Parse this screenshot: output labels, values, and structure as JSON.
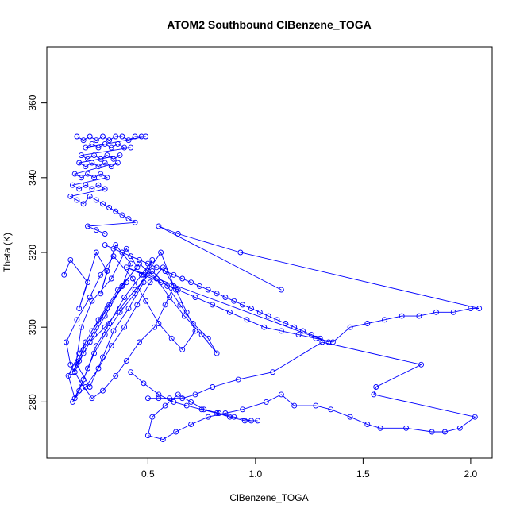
{
  "chart_data": {
    "type": "scatter",
    "title": "ATOM2 Southbound ClBenzene_TOGA",
    "xlabel": "ClBenzene_TOGA",
    "ylabel": "Theta (K)",
    "xlim": [
      0.03,
      2.1
    ],
    "ylim": [
      265,
      375
    ],
    "xticks": [
      {
        "value": 0.5,
        "label": "0.5"
      },
      {
        "value": 1.0,
        "label": "1.0"
      },
      {
        "value": 1.5,
        "label": "1.5"
      },
      {
        "value": 2.0,
        "label": "2.0"
      }
    ],
    "yticks": [
      {
        "value": 280,
        "label": "280"
      },
      {
        "value": 300,
        "label": "300"
      },
      {
        "value": 320,
        "label": "320"
      },
      {
        "value": 340,
        "label": "340"
      },
      {
        "value": 360,
        "label": "360"
      }
    ],
    "marker": "open-circle",
    "connect_points": true,
    "color": "#0000ff",
    "grid": false,
    "series": [
      {
        "x": [
          0.11,
          0.14,
          0.22,
          0.18,
          0.26,
          0.31,
          0.28,
          0.35,
          0.42,
          0.38,
          0.3,
          0.25,
          0.2,
          0.16,
          0.19,
          0.24,
          0.33,
          0.4,
          0.45,
          0.36,
          0.27,
          0.21,
          0.17,
          0.23,
          0.29,
          0.34,
          0.41,
          0.48,
          0.52,
          0.47,
          0.39,
          0.32,
          0.26,
          0.22,
          0.18,
          0.15,
          0.2,
          0.25,
          0.3,
          0.37,
          0.44,
          0.5,
          0.56,
          0.62,
          0.58,
          0.53,
          0.46,
          0.4,
          0.35,
          0.29,
          0.24,
          0.19,
          0.14,
          0.12,
          0.17,
          0.23,
          0.28,
          0.34,
          0.43,
          0.49,
          0.55,
          0.61,
          0.66,
          0.72,
          0.68,
          0.63,
          0.57,
          0.51,
          0.45,
          0.39,
          0.33,
          0.27,
          0.21,
          0.16,
          0.13,
          0.18,
          0.24,
          0.31,
          0.38,
          0.46,
          0.54,
          0.6,
          0.67,
          0.75,
          0.82,
          0.78,
          0.71,
          0.65,
          0.59,
          0.52,
          0.44,
          0.37,
          0.3,
          0.23,
          0.18,
          0.15,
          0.2,
          0.26,
          0.32,
          0.4
        ],
        "y": [
          314,
          318,
          312,
          305,
          320,
          315,
          309,
          322,
          317,
          311,
          303,
          298,
          293,
          288,
          300,
          307,
          313,
          321,
          316,
          310,
          302,
          296,
          290,
          284,
          292,
          299,
          305,
          312,
          318,
          314,
          308,
          301,
          295,
          289,
          283,
          280,
          286,
          293,
          298,
          304,
          309,
          315,
          320,
          311,
          306,
          300,
          296,
          291,
          287,
          283,
          281,
          285,
          290,
          296,
          302,
          308,
          314,
          319,
          313,
          307,
          301,
          297,
          294,
          299,
          304,
          310,
          316,
          312,
          306,
          300,
          295,
          289,
          284,
          281,
          287,
          293,
          299,
          305,
          311,
          317,
          313,
          308,
          303,
          298,
          293,
          297,
          301,
          306,
          311,
          315,
          310,
          305,
          300,
          296,
          291,
          288,
          294,
          300,
          306,
          312
        ]
      },
      {
        "x": [
          0.17,
          0.2,
          0.23,
          0.26,
          0.29,
          0.32,
          0.35,
          0.38,
          0.41,
          0.44,
          0.47,
          0.49,
          0.21,
          0.24,
          0.27,
          0.3,
          0.33,
          0.36,
          0.39,
          0.42,
          0.19,
          0.22,
          0.25,
          0.28,
          0.31,
          0.34,
          0.37,
          0.18,
          0.21,
          0.24,
          0.27,
          0.3,
          0.33,
          0.36,
          0.16,
          0.19,
          0.22,
          0.25,
          0.28,
          0.31,
          0.15,
          0.18,
          0.21,
          0.24,
          0.27,
          0.3,
          0.14,
          0.17,
          0.2,
          0.23,
          0.26,
          0.29,
          0.32,
          0.35,
          0.38,
          0.41,
          0.44,
          0.22,
          0.26,
          0.3
        ],
        "y": [
          351,
          350,
          351,
          350,
          351,
          350,
          351,
          351,
          350,
          351,
          351,
          351,
          348,
          349,
          348,
          349,
          348,
          349,
          348,
          348,
          346,
          345,
          346,
          345,
          346,
          345,
          346,
          344,
          343,
          344,
          343,
          344,
          343,
          344,
          341,
          340,
          341,
          340,
          341,
          340,
          338,
          337,
          338,
          337,
          338,
          337,
          335,
          334,
          333,
          335,
          334,
          333,
          332,
          331,
          330,
          329,
          328,
          327,
          326,
          325
        ]
      },
      {
        "x": [
          0.3,
          0.34,
          0.38,
          0.42,
          0.46,
          0.5,
          0.54,
          0.58,
          0.62,
          0.66,
          0.7,
          0.74,
          0.78,
          0.82,
          0.86,
          0.9,
          0.94,
          0.98,
          1.02,
          1.06,
          1.1,
          1.14,
          1.18,
          1.22,
          1.26,
          1.3,
          1.34,
          0.4,
          0.48,
          0.56,
          0.64,
          0.72,
          0.8,
          0.88,
          0.96,
          1.04,
          1.12,
          1.2,
          1.28,
          1.36,
          1.44,
          1.52,
          1.6,
          1.68,
          1.76,
          1.84,
          1.92,
          2.0,
          2.04,
          0.93,
          0.64,
          0.55,
          1.12
        ],
        "y": [
          322,
          321,
          320,
          319,
          318,
          317,
          316,
          315,
          314,
          313,
          312,
          311,
          310,
          309,
          308,
          307,
          306,
          305,
          304,
          303,
          302,
          301,
          300,
          299,
          298,
          297,
          296,
          316,
          314,
          312,
          310,
          308,
          306,
          304,
          302,
          300,
          299,
          298,
          297,
          296,
          300,
          301,
          302,
          303,
          303,
          304,
          304,
          305,
          305,
          320,
          325,
          327,
          310
        ]
      },
      {
        "x": [
          0.42,
          0.48,
          0.55,
          0.62,
          0.68,
          0.75,
          0.82,
          0.88,
          0.95,
          1.01,
          0.98,
          0.9,
          0.83,
          0.76,
          0.7,
          0.64,
          0.58,
          0.52,
          0.5,
          0.57,
          0.63,
          0.7,
          0.78,
          0.86,
          0.94,
          1.05,
          1.12,
          1.18,
          1.28,
          1.35,
          1.44,
          1.52,
          1.58,
          1.7,
          1.82,
          1.88,
          1.95,
          2.02,
          1.55,
          1.56,
          1.77,
          1.31,
          1.08,
          0.92,
          0.8,
          0.72,
          0.66,
          0.6,
          0.55,
          0.5
        ],
        "y": [
          288,
          285,
          282,
          280,
          279,
          278,
          277,
          276,
          275,
          275,
          275,
          276,
          277,
          278,
          280,
          282,
          279,
          276,
          271,
          270,
          272,
          274,
          276,
          277,
          278,
          280,
          282,
          279,
          279,
          278,
          276,
          274,
          273,
          273,
          272,
          272,
          273,
          276,
          282,
          284,
          290,
          296,
          288,
          286,
          284,
          282,
          281,
          281,
          281,
          281
        ]
      }
    ]
  }
}
